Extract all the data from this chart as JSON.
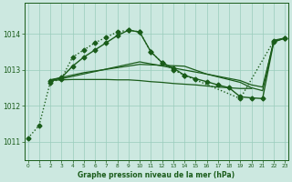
{
  "bg_color": "#cce8e0",
  "grid_color": "#99ccbb",
  "line_color": "#1a5c1a",
  "title": "Graphe pression niveau de la mer (hPa)",
  "xlim": [
    -0.3,
    23.3
  ],
  "ylim": [
    1010.5,
    1014.85
  ],
  "yticks": [
    1011,
    1012,
    1013,
    1014
  ],
  "xticks": [
    0,
    1,
    2,
    3,
    4,
    5,
    6,
    7,
    8,
    9,
    10,
    11,
    12,
    13,
    14,
    15,
    16,
    17,
    18,
    19,
    20,
    21,
    22,
    23
  ],
  "series": [
    {
      "x": [
        0,
        1,
        2,
        3,
        4,
        5,
        6,
        7,
        8,
        9,
        10,
        11,
        12,
        13,
        14,
        19,
        22,
        23
      ],
      "y": [
        1011.1,
        1011.45,
        1012.65,
        1012.75,
        1013.35,
        1013.55,
        1013.75,
        1013.9,
        1014.05,
        1014.1,
        1014.05,
        1013.5,
        1013.2,
        1013.0,
        1012.85,
        1012.2,
        1013.8,
        1013.87
      ],
      "marker": true,
      "linestyle": ":",
      "linewidth": 1.0,
      "markersize": 2.5
    },
    {
      "x": [
        2,
        3,
        4,
        5,
        6,
        7,
        8,
        9,
        10,
        11,
        12,
        13,
        14,
        15,
        16,
        17,
        18,
        19,
        20,
        21,
        22,
        23
      ],
      "y": [
        1012.7,
        1012.78,
        1013.1,
        1013.35,
        1013.55,
        1013.75,
        1013.95,
        1014.1,
        1014.05,
        1013.5,
        1013.2,
        1013.05,
        1012.85,
        1012.75,
        1012.67,
        1012.58,
        1012.5,
        1012.25,
        1012.22,
        1012.2,
        1013.78,
        1013.88
      ],
      "marker": true,
      "linestyle": "-",
      "linewidth": 1.0,
      "markersize": 2.5
    },
    {
      "x": [
        2,
        3,
        4,
        5,
        6,
        7,
        8,
        9,
        10,
        11,
        12,
        13,
        14,
        15,
        16,
        17,
        18,
        19,
        20
      ],
      "y": [
        1012.7,
        1012.72,
        1012.73,
        1012.73,
        1012.73,
        1012.73,
        1012.72,
        1012.72,
        1012.7,
        1012.67,
        1012.65,
        1012.62,
        1012.6,
        1012.58,
        1012.55,
        1012.52,
        1012.5,
        1012.48,
        1012.48
      ],
      "marker": false,
      "linestyle": "-",
      "linewidth": 0.9,
      "markersize": 0
    },
    {
      "x": [
        2,
        5,
        10,
        14,
        16,
        19,
        20,
        21,
        22,
        23
      ],
      "y": [
        1012.72,
        1012.92,
        1013.15,
        1013.1,
        1012.88,
        1012.65,
        1012.5,
        1012.42,
        1013.82,
        1013.88
      ],
      "marker": false,
      "linestyle": "-",
      "linewidth": 0.9,
      "markersize": 0
    },
    {
      "x": [
        2,
        3,
        10,
        16,
        19,
        20,
        21,
        22,
        23
      ],
      "y": [
        1012.72,
        1012.75,
        1013.22,
        1012.88,
        1012.7,
        1012.58,
        1012.52,
        1013.77,
        1013.88
      ],
      "marker": false,
      "linestyle": "-",
      "linewidth": 0.9,
      "markersize": 0
    }
  ]
}
